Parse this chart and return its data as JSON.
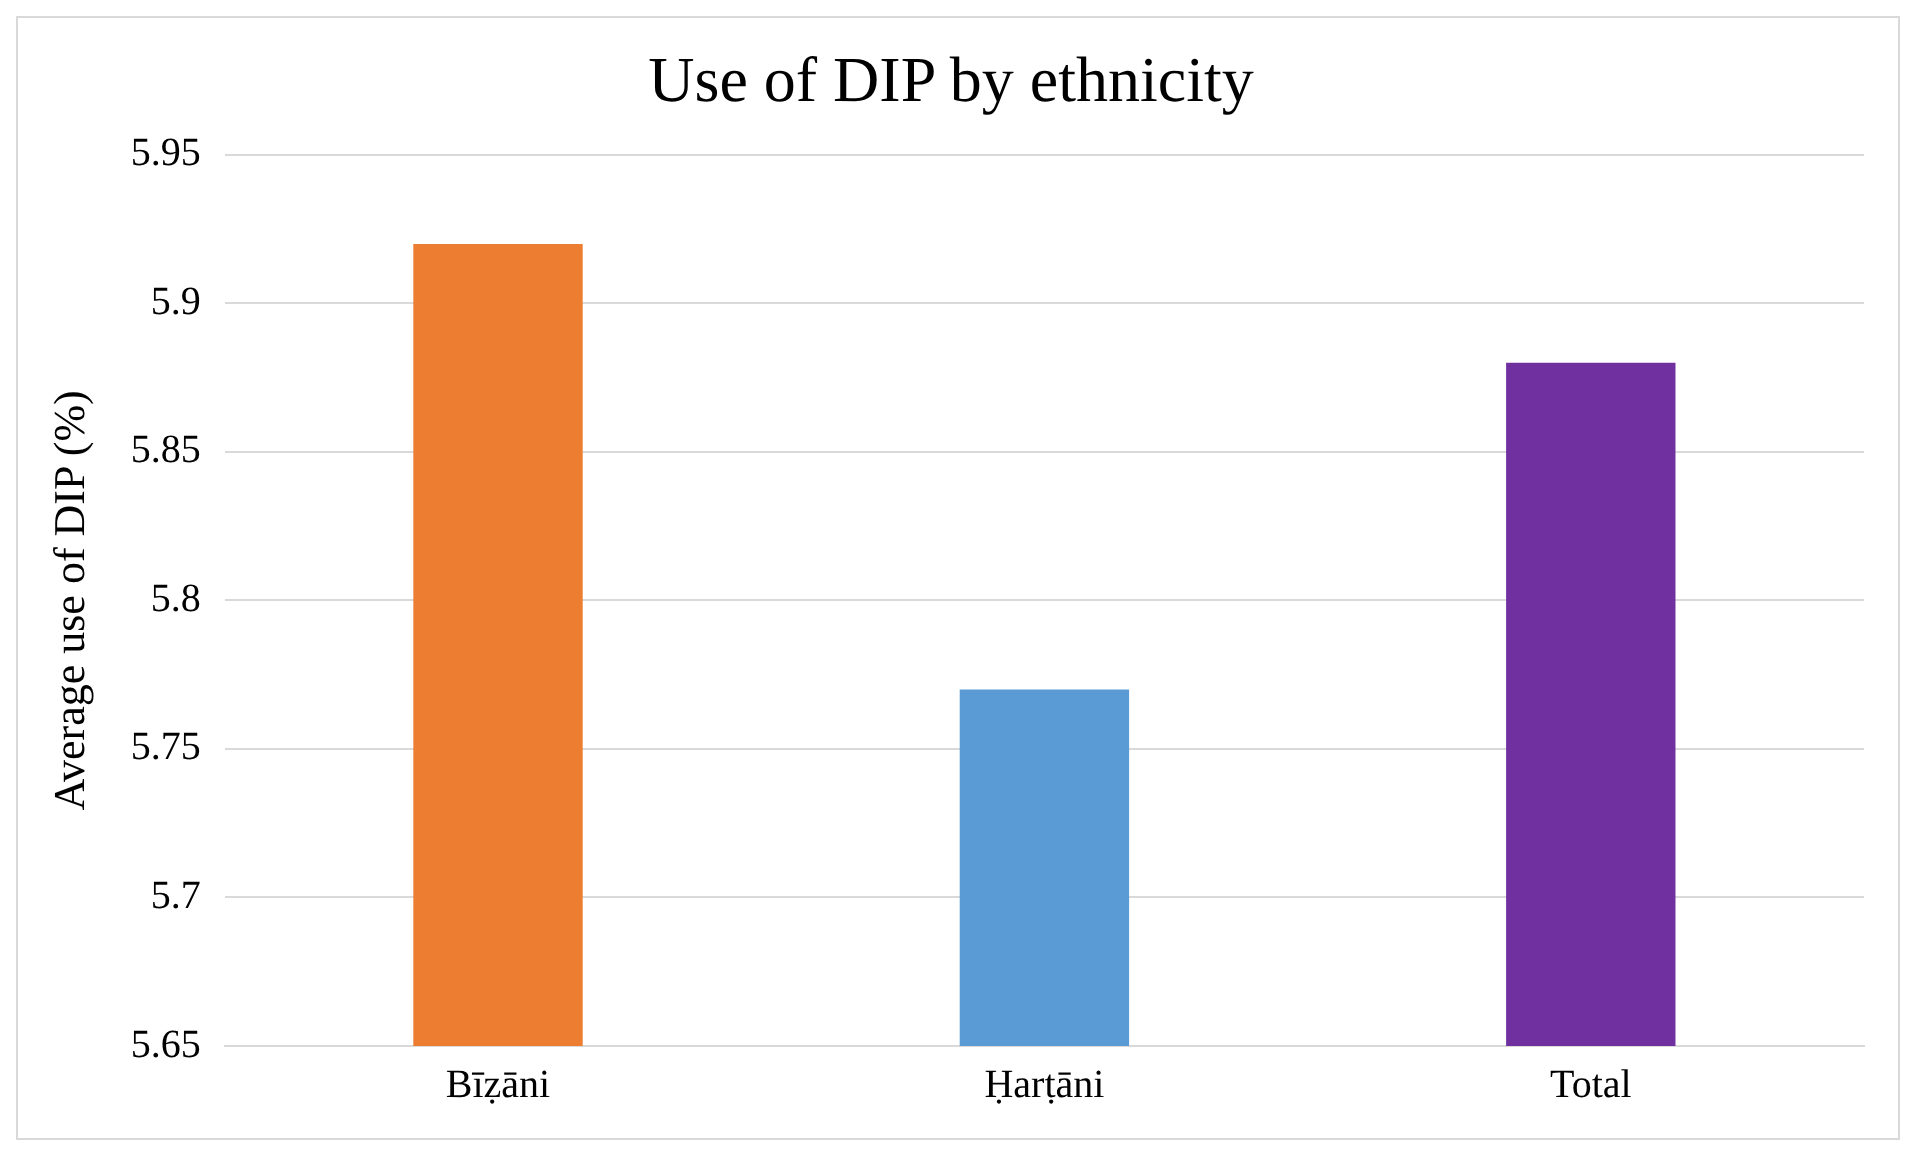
{
  "chart_data": {
    "type": "bar",
    "title": "Use of DIP by ethnicity",
    "ylabel": "Average use of DIP (%)",
    "categories": [
      "Bīẓāni",
      "Ḥarṭāni",
      "Total"
    ],
    "values": [
      5.92,
      5.77,
      5.88
    ],
    "colors": [
      "#ed7d31",
      "#5b9bd5",
      "#7030a0"
    ],
    "ylim": [
      5.65,
      5.95
    ],
    "yticks": [
      5.65,
      5.7,
      5.75,
      5.8,
      5.85,
      5.9,
      5.95
    ],
    "grid": "y",
    "legend": false
  }
}
